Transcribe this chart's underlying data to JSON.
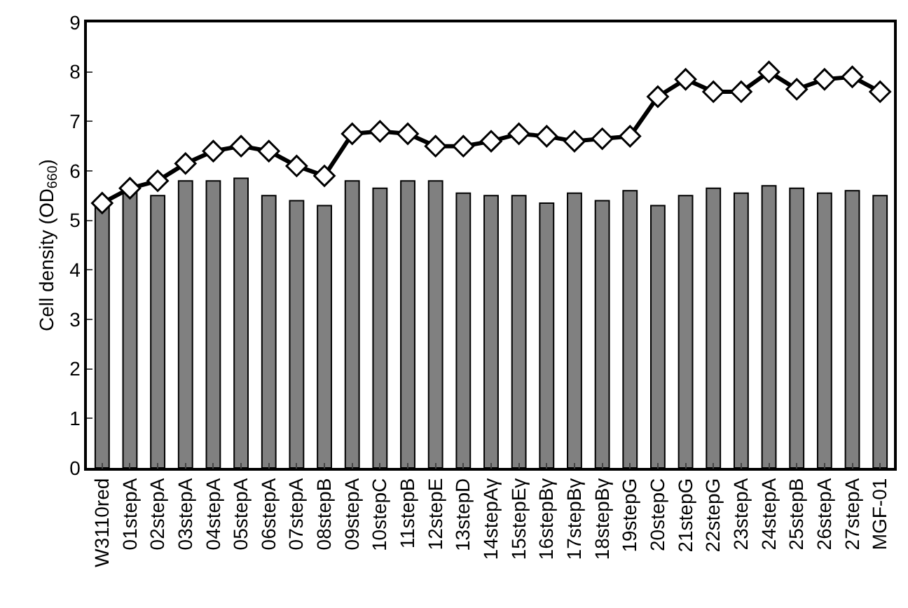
{
  "chart_data": {
    "type": "bar",
    "ylabel": "Cell density (OD$_{660}$)",
    "categories": [
      "W3110red",
      "01stepA",
      "02stepA",
      "03stepA",
      "04stepA",
      "05stepA",
      "06stepA",
      "07stepA",
      "08stepB",
      "09stepA",
      "10stepC",
      "11stepB",
      "12stepE",
      "13stepD",
      "14stepAγ",
      "15stepEγ",
      "16stepBγ",
      "17stepBγ",
      "18stepBγ",
      "19stepG",
      "20stepC",
      "21stepG",
      "22stepG",
      "23stepA",
      "24stepA",
      "25stepB",
      "26stepA",
      "27stepA",
      "MGF-01"
    ],
    "series": [
      {
        "color": "#808080",
        "values": [
          5.3,
          5.6,
          5.5,
          5.8,
          5.8,
          5.85,
          5.5,
          5.4,
          5.3,
          5.8,
          5.65,
          5.8,
          5.8,
          5.55,
          5.5,
          5.5,
          5.35,
          5.55,
          5.4,
          5.6,
          5.3,
          5.5,
          5.65,
          5.55,
          5.7,
          5.65,
          5.55,
          5.6,
          5.5
        ]
      },
      {
        "type": "line",
        "color": "#000000",
        "marker": "diamond",
        "values": [
          5.35,
          5.65,
          5.8,
          6.15,
          6.4,
          6.5,
          6.4,
          6.1,
          5.9,
          6.75,
          6.8,
          6.75,
          6.5,
          6.5,
          6.6,
          6.75,
          6.7,
          6.6,
          6.65,
          6.7,
          7.5,
          7.85,
          7.6,
          7.6,
          8.0,
          7.65,
          7.85,
          7.9,
          7.6
        ]
      }
    ],
    "ylim": [
      0,
      9
    ],
    "yticks": [
      0,
      1,
      2,
      3,
      4,
      5,
      6,
      7,
      8,
      9
    ],
    "grid": false
  }
}
